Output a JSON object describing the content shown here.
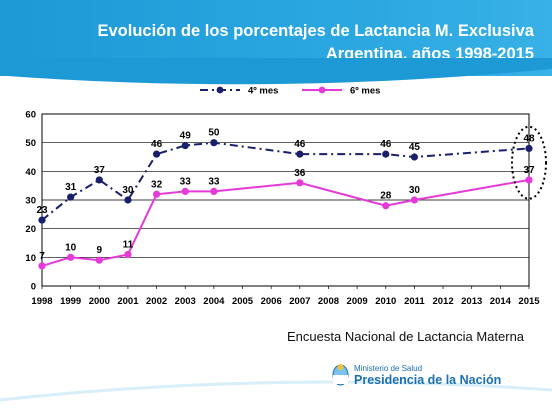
{
  "header": {
    "title_line1": "Evolución de los porcentajes de Lactancia M. Exclusiva",
    "title_line2": "Argentina, años 1998-2015"
  },
  "source": "Encuesta Nacional de Lactancia Materna",
  "footer": {
    "ministry_small": "Ministerio de Salud",
    "ministry_big": "Presidencia de la Nación"
  },
  "colors": {
    "header": "#1d9ad6",
    "series_4mes": "#1a1f6b",
    "series_6mes": "#e53ad8",
    "grid": "#000000",
    "plot_bg": "#ffffff"
  },
  "chart_data": {
    "type": "line",
    "x": [
      1998,
      1999,
      2000,
      2001,
      2002,
      2003,
      2004,
      2005,
      2006,
      2007,
      2008,
      2009,
      2010,
      2011,
      2012,
      2013,
      2014,
      2015
    ],
    "xticks": [
      "1998",
      "1999",
      "2000",
      "2001",
      "2002",
      "2003",
      "2004",
      "2005",
      "2006",
      "2007",
      "2008",
      "2009",
      "2010",
      "2011",
      "2012",
      "2013",
      "2014",
      "2015"
    ],
    "yticks": [
      "0",
      "10",
      "20",
      "30",
      "40",
      "50",
      "60"
    ],
    "ylim": [
      0,
      60
    ],
    "grid": true,
    "legend_position": "top",
    "series": [
      {
        "name": "4º mes",
        "style": "dash-dot",
        "color": "#1a1f6b",
        "points": [
          [
            1998,
            23
          ],
          [
            1999,
            31
          ],
          [
            2000,
            37
          ],
          [
            2001,
            30
          ],
          [
            2002,
            46
          ],
          [
            2003,
            49
          ],
          [
            2004,
            50
          ],
          [
            2007,
            46
          ],
          [
            2010,
            46
          ],
          [
            2011,
            45
          ],
          [
            2015,
            48
          ]
        ]
      },
      {
        "name": "6º mes",
        "style": "solid",
        "color": "#e53ad8",
        "points": [
          [
            1998,
            7
          ],
          [
            1999,
            10
          ],
          [
            2000,
            9
          ],
          [
            2001,
            11
          ],
          [
            2002,
            32
          ],
          [
            2003,
            33
          ],
          [
            2004,
            33
          ],
          [
            2007,
            36
          ],
          [
            2010,
            28
          ],
          [
            2011,
            30
          ],
          [
            2015,
            37
          ]
        ]
      }
    ],
    "annotation": "dotted-ellipse-around-2015"
  }
}
